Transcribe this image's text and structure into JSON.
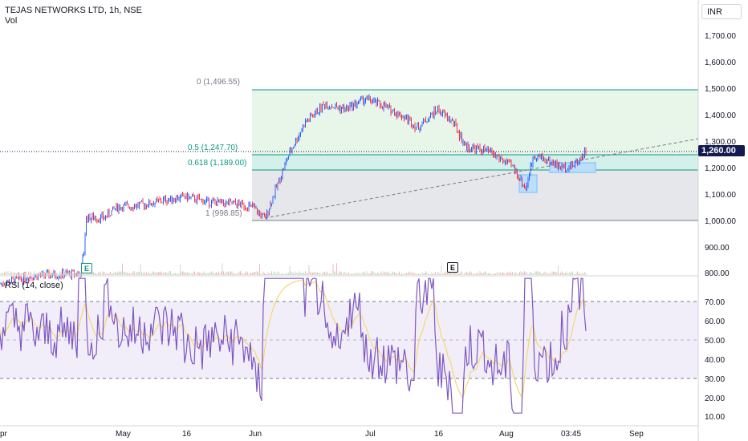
{
  "header": {
    "title": "TEJAS NETWORKS LTD, 1h, NSE",
    "volume_label": "Vol",
    "currency": "INR"
  },
  "price_axis": {
    "ticks": [
      "1,700.00",
      "1,600.00",
      "1,500.00",
      "1,400.00",
      "1,300.00",
      "1,200.00",
      "1,100.00",
      "1,000.00",
      "900.00",
      "800.00"
    ],
    "current_price": "1,260.00",
    "current_price_color": "#131a4f"
  },
  "rsi": {
    "label": "RSI (14, close)",
    "ticks": [
      "70.00",
      "60.00",
      "50.00",
      "40.00",
      "30.00",
      "20.00",
      "10.00"
    ],
    "line_color": "#7e57c2",
    "ma_color": "#f5d76e"
  },
  "time_axis": {
    "labels": [
      "pr",
      "May",
      "16",
      "Jun",
      "Jul",
      "16",
      "Aug",
      "03:45",
      "Sep"
    ]
  },
  "fibonacci": {
    "levels": [
      {
        "label": "0 (1,496.55)",
        "value": 1496.55,
        "color": "#787b86"
      },
      {
        "label": "0.5 (1,247.70)",
        "value": 1247.7,
        "color": "#089981"
      },
      {
        "label": "0.618 (1,189.00)",
        "value": 1189.0,
        "color": "#089981"
      },
      {
        "label": "1 (998.85)",
        "value": 998.85,
        "color": "#787b86"
      }
    ],
    "colors": {
      "upper_zone": "#e8f5e9",
      "mid_zone": "#d4f0ea",
      "lower_zone": "#e6e7eb"
    }
  },
  "earnings_badges": [
    "E",
    "E"
  ],
  "colors": {
    "up": "#089981",
    "down": "#f23645",
    "candle_up": "#2962ff",
    "candle_down": "#f23645"
  }
}
